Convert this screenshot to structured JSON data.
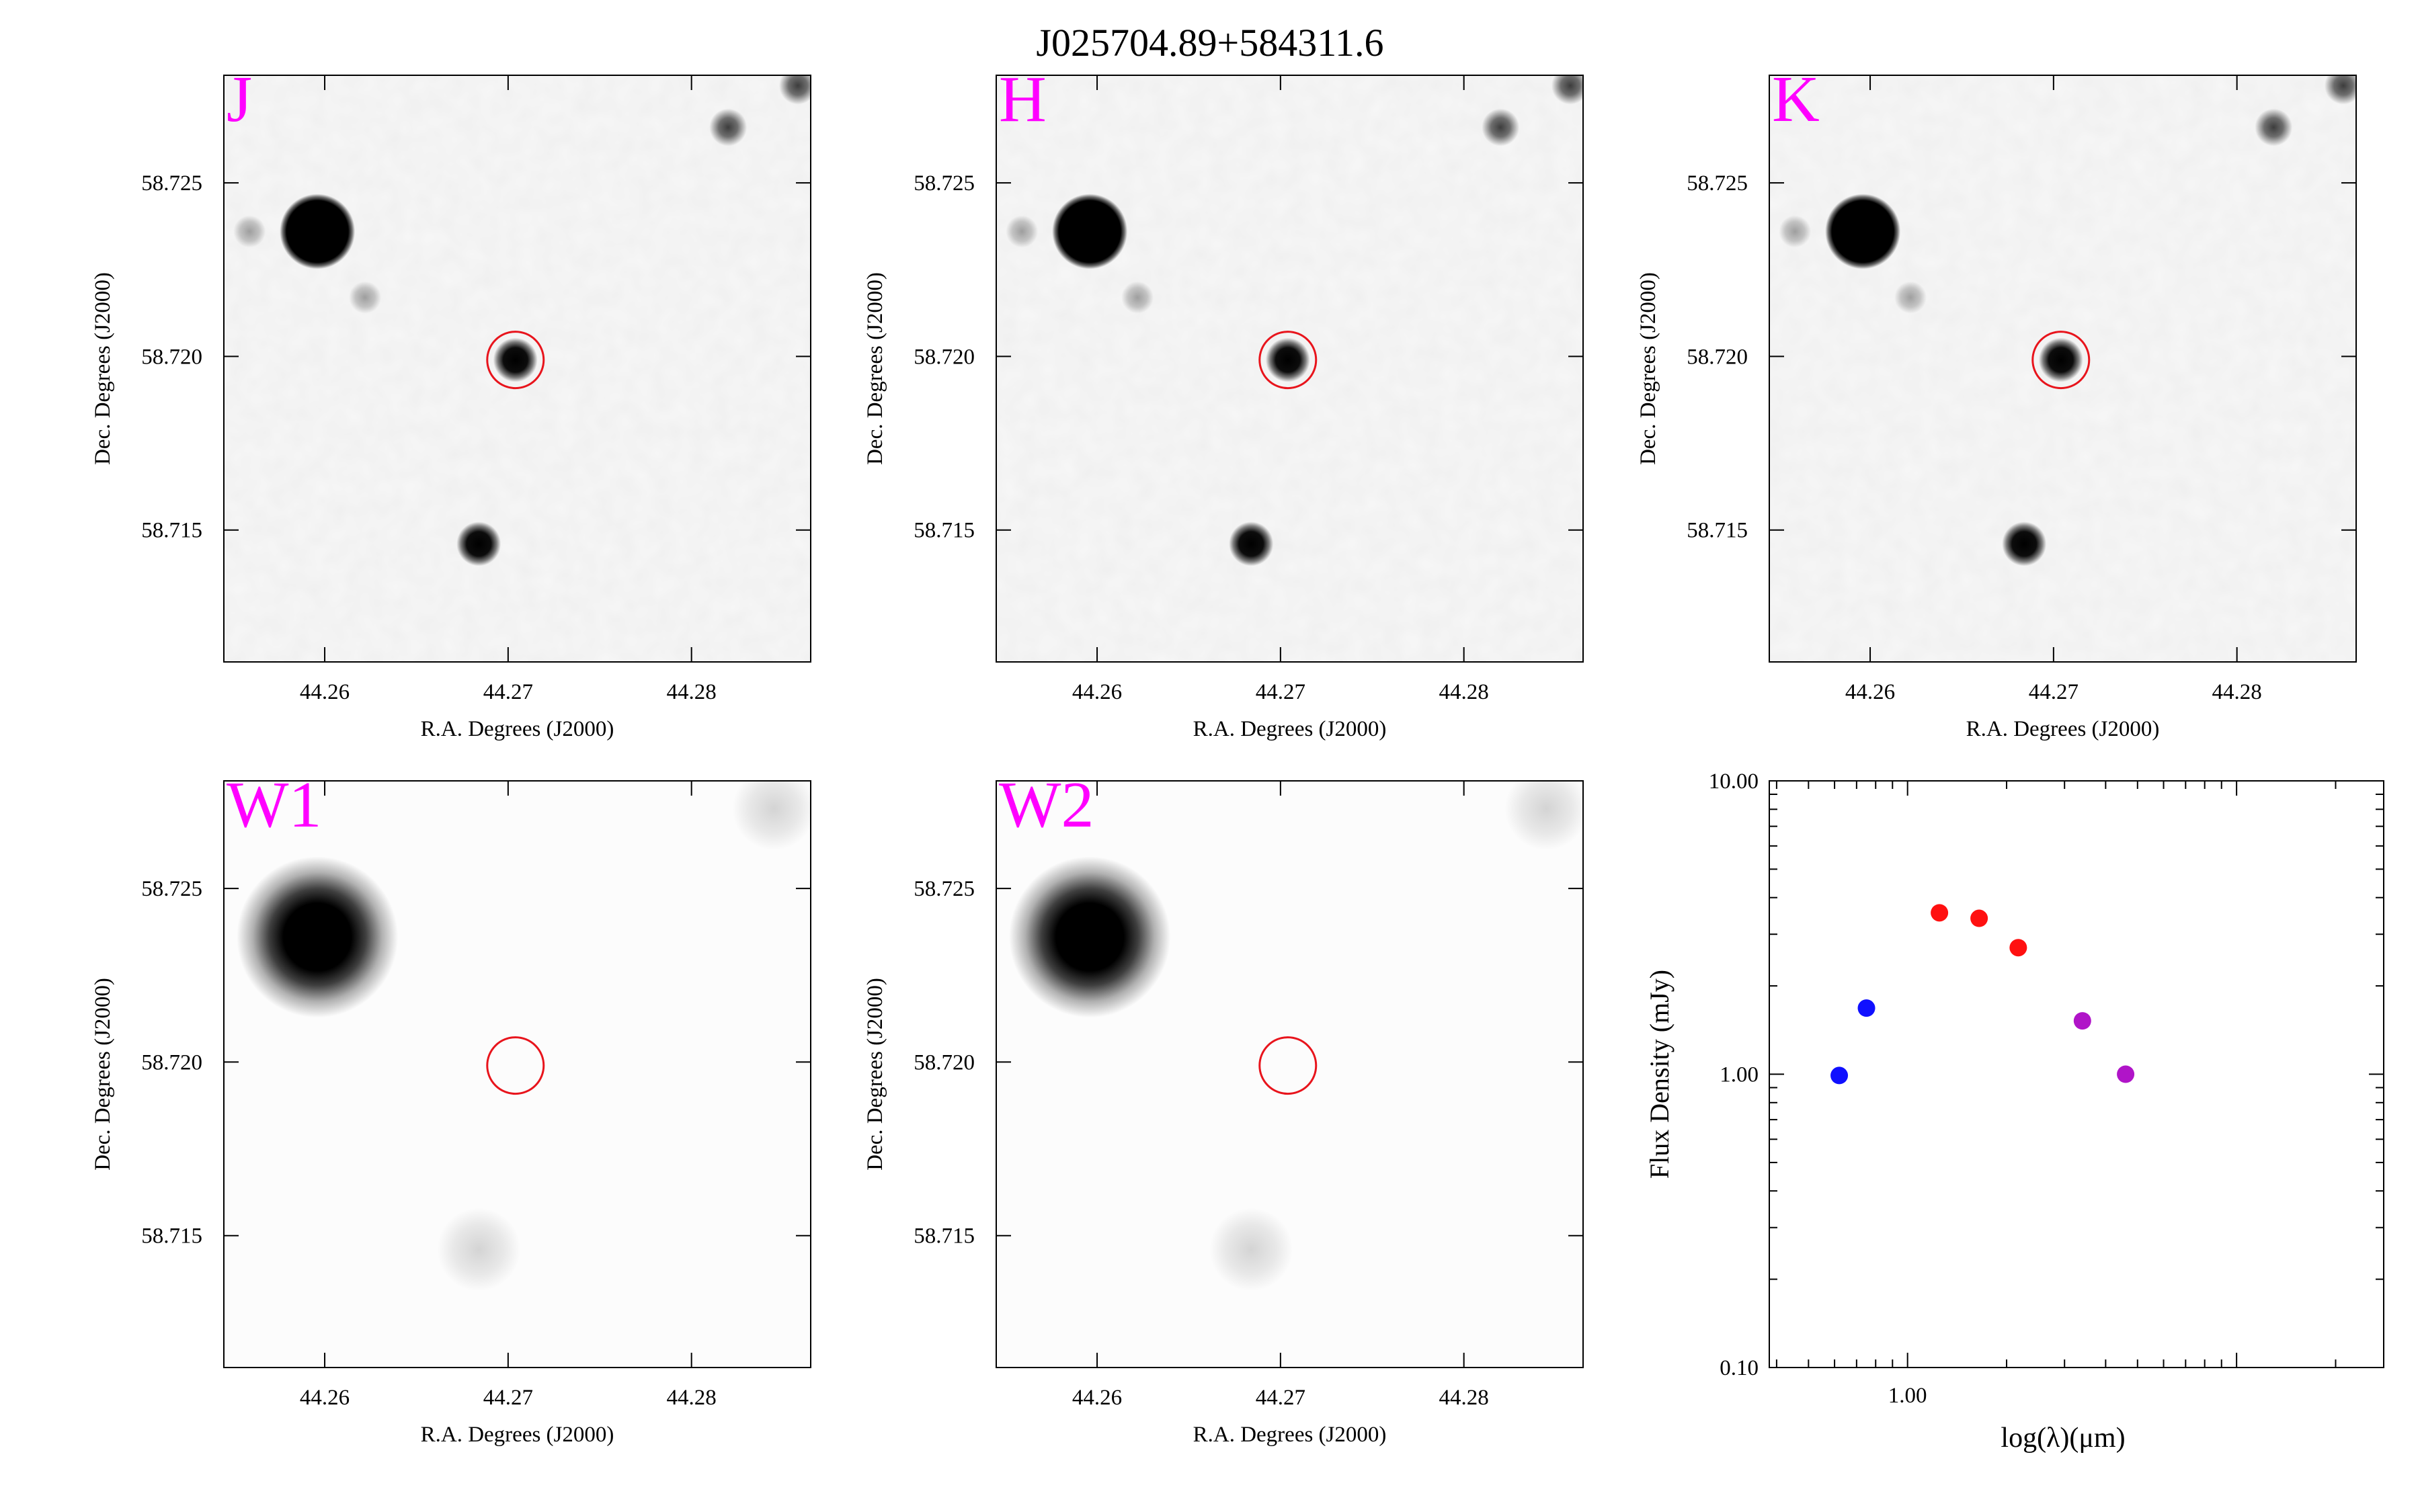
{
  "title": "J025704.89+584311.6",
  "colors": {
    "band_label": "#ff00ff",
    "circle": "#e8141c",
    "sed_blue": "#1010ff",
    "sed_red": "#ff1010",
    "sed_purple": "#b014c8"
  },
  "panels": [
    {
      "band": "J",
      "smooth": false,
      "xlabel": "R.A. Degrees (J2000)",
      "ylabel": "Dec. Degrees (J2000)",
      "yticks": [
        "58.725",
        "58.720",
        "58.715"
      ],
      "xticks": [
        "44.26",
        "44.27",
        "44.28"
      ]
    },
    {
      "band": "H",
      "smooth": false,
      "xlabel": "R.A. Degrees (J2000)",
      "ylabel": "Dec. Degrees (J2000)",
      "yticks": [
        "58.725",
        "58.720",
        "58.715"
      ],
      "xticks": [
        "44.26",
        "44.27",
        "44.28"
      ]
    },
    {
      "band": "K",
      "smooth": false,
      "xlabel": "R.A. Degrees (J2000)",
      "ylabel": "Dec. Degrees (J2000)",
      "yticks": [
        "58.725",
        "58.720",
        "58.715"
      ],
      "xticks": [
        "44.26",
        "44.27",
        "44.28"
      ]
    },
    {
      "band": "W1",
      "smooth": true,
      "xlabel": "R.A. Degrees (J2000)",
      "ylabel": "Dec. Degrees (J2000)",
      "yticks": [
        "58.725",
        "58.720",
        "58.715"
      ],
      "xticks": [
        "44.26",
        "44.27",
        "44.28"
      ]
    },
    {
      "band": "W2",
      "smooth": true,
      "xlabel": "R.A. Degrees (J2000)",
      "ylabel": "Dec. Degrees (J2000)",
      "yticks": [
        "58.725",
        "58.720",
        "58.715"
      ],
      "xticks": [
        "44.26",
        "44.27",
        "44.28"
      ]
    }
  ],
  "chart_data": [
    {
      "type": "image",
      "band": "J",
      "xlim": [
        44.2545,
        44.2865
      ],
      "ylim": [
        58.7112,
        58.7281
      ],
      "target": {
        "ra": 44.2704,
        "dec": 58.7199
      },
      "sources": [
        {
          "ra": 44.2596,
          "dec": 58.7236,
          "mag": "bright"
        },
        {
          "ra": 44.2704,
          "dec": 58.7199,
          "mag": "medium"
        },
        {
          "ra": 44.2684,
          "dec": 58.7146,
          "mag": "medium"
        },
        {
          "ra": 44.282,
          "dec": 58.7266,
          "mag": "faint"
        },
        {
          "ra": 44.2858,
          "dec": 58.7278,
          "mag": "faint"
        },
        {
          "ra": 44.2622,
          "dec": 58.7217,
          "mag": "very-faint"
        },
        {
          "ra": 44.2559,
          "dec": 58.7236,
          "mag": "very-faint"
        }
      ]
    },
    {
      "type": "image",
      "band": "H",
      "xlim": [
        44.2545,
        44.2865
      ],
      "ylim": [
        58.7112,
        58.7281
      ],
      "target": {
        "ra": 44.2704,
        "dec": 58.7199
      },
      "sources": [
        {
          "ra": 44.2596,
          "dec": 58.7236,
          "mag": "bright"
        },
        {
          "ra": 44.2704,
          "dec": 58.7199,
          "mag": "medium"
        },
        {
          "ra": 44.2684,
          "dec": 58.7146,
          "mag": "medium"
        },
        {
          "ra": 44.282,
          "dec": 58.7266,
          "mag": "faint"
        },
        {
          "ra": 44.2858,
          "dec": 58.7278,
          "mag": "faint"
        },
        {
          "ra": 44.2622,
          "dec": 58.7217,
          "mag": "very-faint"
        },
        {
          "ra": 44.2559,
          "dec": 58.7236,
          "mag": "very-faint"
        }
      ]
    },
    {
      "type": "image",
      "band": "K",
      "xlim": [
        44.2545,
        44.2865
      ],
      "ylim": [
        58.7112,
        58.7281
      ],
      "target": {
        "ra": 44.2704,
        "dec": 58.7199
      },
      "sources": [
        {
          "ra": 44.2596,
          "dec": 58.7236,
          "mag": "bright"
        },
        {
          "ra": 44.2704,
          "dec": 58.7199,
          "mag": "medium"
        },
        {
          "ra": 44.2684,
          "dec": 58.7146,
          "mag": "medium"
        },
        {
          "ra": 44.282,
          "dec": 58.7266,
          "mag": "faint"
        },
        {
          "ra": 44.2858,
          "dec": 58.7278,
          "mag": "faint"
        },
        {
          "ra": 44.2622,
          "dec": 58.7217,
          "mag": "very-faint"
        },
        {
          "ra": 44.2559,
          "dec": 58.7236,
          "mag": "very-faint"
        }
      ]
    },
    {
      "type": "image",
      "band": "W1",
      "xlim": [
        44.2545,
        44.2865
      ],
      "ylim": [
        58.7112,
        58.7281
      ],
      "target": {
        "ra": 44.2704,
        "dec": 58.7199
      },
      "sources": [
        {
          "ra": 44.2596,
          "dec": 58.7236,
          "mag": "bright"
        },
        {
          "ra": 44.2684,
          "dec": 58.7146,
          "mag": "very-faint"
        },
        {
          "ra": 44.2845,
          "dec": 58.7273,
          "mag": "very-faint"
        }
      ]
    },
    {
      "type": "image",
      "band": "W2",
      "xlim": [
        44.2545,
        44.2865
      ],
      "ylim": [
        58.7112,
        58.7281
      ],
      "target": {
        "ra": 44.2704,
        "dec": 58.7199
      },
      "sources": [
        {
          "ra": 44.2596,
          "dec": 58.7236,
          "mag": "bright"
        },
        {
          "ra": 44.2684,
          "dec": 58.7146,
          "mag": "very-faint"
        },
        {
          "ra": 44.2845,
          "dec": 58.7273,
          "mag": "very-faint"
        }
      ]
    },
    {
      "type": "scatter",
      "xlabel": "log(λ)(μm)",
      "ylabel": "Flux Density (mJy)",
      "xscale": "log",
      "yscale": "log",
      "xlim": [
        0.38,
        28
      ],
      "ylim": [
        0.1,
        10
      ],
      "xticks": [
        {
          "value": 1.0,
          "label": "1.00"
        }
      ],
      "yticks": [
        {
          "value": 0.1,
          "label": "0.10"
        },
        {
          "value": 1.0,
          "label": "1.00"
        },
        {
          "value": 10.0,
          "label": "10.00"
        }
      ],
      "series": [
        {
          "color": "blue",
          "x": [
            0.62,
            0.75
          ],
          "y": [
            0.99,
            1.68
          ]
        },
        {
          "color": "red",
          "x": [
            1.25,
            1.65,
            2.17
          ],
          "y": [
            3.55,
            3.4,
            2.7
          ]
        },
        {
          "color": "purple",
          "x": [
            3.4,
            4.6
          ],
          "y": [
            1.52,
            1.0
          ]
        }
      ]
    }
  ]
}
